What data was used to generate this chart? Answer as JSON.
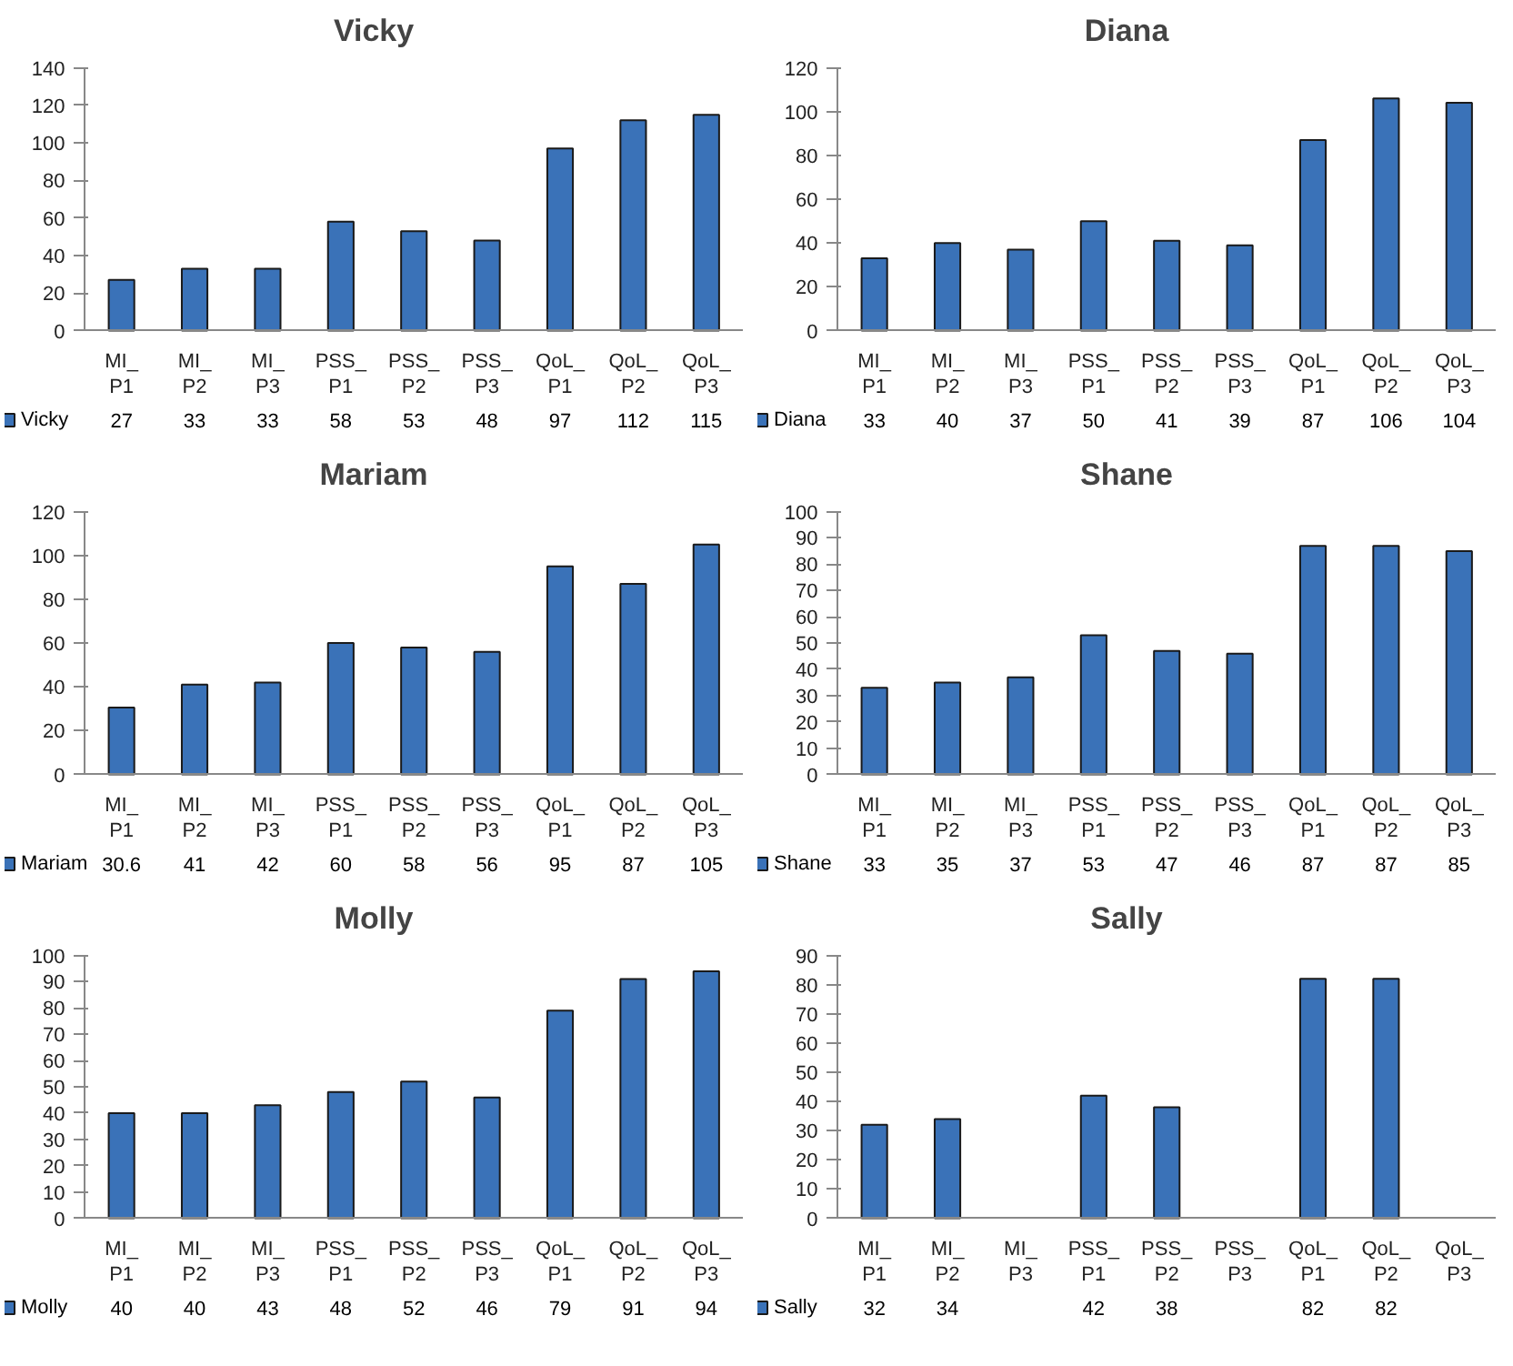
{
  "chart_data": [
    {
      "type": "bar",
      "title": "Vicky",
      "categories": [
        "MI_\nP1",
        "MI_\nP2",
        "MI_\nP3",
        "PSS_\nP1",
        "PSS_\nP2",
        "PSS_\nP3",
        "QoL_\nP1",
        "QoL_\nP2",
        "QoL_\nP3"
      ],
      "series": [
        {
          "name": "Vicky",
          "color": "#3a72b8",
          "values": [
            27,
            33,
            33,
            58,
            53,
            48,
            97,
            112,
            115
          ]
        }
      ],
      "ylim": [
        0,
        140
      ],
      "yticks": [
        0,
        20,
        40,
        60,
        80,
        100,
        120,
        140
      ],
      "data_labels": true,
      "grid": false,
      "legend": "bottom left"
    },
    {
      "type": "bar",
      "title": "Diana",
      "categories": [
        "MI_\nP1",
        "MI_\nP2",
        "MI_\nP3",
        "PSS_\nP1",
        "PSS_\nP2",
        "PSS_\nP3",
        "QoL_\nP1",
        "QoL_\nP2",
        "QoL_\nP3"
      ],
      "series": [
        {
          "name": "Diana",
          "color": "#3a72b8",
          "values": [
            33,
            40,
            37,
            50,
            41,
            39,
            87,
            106,
            104
          ]
        }
      ],
      "ylim": [
        0,
        120
      ],
      "yticks": [
        0,
        20,
        40,
        60,
        80,
        100,
        120
      ],
      "data_labels": true,
      "grid": false,
      "legend": "bottom left"
    },
    {
      "type": "bar",
      "title": "Mariam",
      "categories": [
        "MI_\nP1",
        "MI_\nP2",
        "MI_\nP3",
        "PSS_\nP1",
        "PSS_\nP2",
        "PSS_\nP3",
        "QoL_\nP1",
        "QoL_\nP2",
        "QoL_\nP3"
      ],
      "series": [
        {
          "name": "Mariam",
          "color": "#3a72b8",
          "values": [
            30.6,
            41,
            42,
            60,
            58,
            56,
            95,
            87,
            105
          ]
        }
      ],
      "ylim": [
        0,
        120
      ],
      "yticks": [
        0,
        20,
        40,
        60,
        80,
        100,
        120
      ],
      "data_labels": true,
      "grid": false,
      "legend": "bottom left"
    },
    {
      "type": "bar",
      "title": "Shane",
      "categories": [
        "MI_\nP1",
        "MI_\nP2",
        "MI_\nP3",
        "PSS_\nP1",
        "PSS_\nP2",
        "PSS_\nP3",
        "QoL_\nP1",
        "QoL_\nP2",
        "QoL_\nP3"
      ],
      "series": [
        {
          "name": "Shane",
          "color": "#3a72b8",
          "values": [
            33,
            35,
            37,
            53,
            47,
            46,
            87,
            87,
            85
          ]
        }
      ],
      "ylim": [
        0,
        100
      ],
      "yticks": [
        0,
        10,
        20,
        30,
        40,
        50,
        60,
        70,
        80,
        90,
        100
      ],
      "data_labels": true,
      "grid": false,
      "legend": "bottom left"
    },
    {
      "type": "bar",
      "title": "Molly",
      "categories": [
        "MI_\nP1",
        "MI_\nP2",
        "MI_\nP3",
        "PSS_\nP1",
        "PSS_\nP2",
        "PSS_\nP3",
        "QoL_\nP1",
        "QoL_\nP2",
        "QoL_\nP3"
      ],
      "series": [
        {
          "name": "Molly",
          "color": "#3a72b8",
          "values": [
            40,
            40,
            43,
            48,
            52,
            46,
            79,
            91,
            94
          ]
        }
      ],
      "ylim": [
        0,
        100
      ],
      "yticks": [
        0,
        10,
        20,
        30,
        40,
        50,
        60,
        70,
        80,
        90,
        100
      ],
      "data_labels": true,
      "grid": false,
      "legend": "bottom left"
    },
    {
      "type": "bar",
      "title": "Sally",
      "categories": [
        "MI_\nP1",
        "MI_\nP2",
        "MI_\nP3",
        "PSS_\nP1",
        "PSS_\nP2",
        "PSS_\nP3",
        "QoL_\nP1",
        "QoL_\nP2",
        "QoL_\nP3"
      ],
      "series": [
        {
          "name": "Sally",
          "color": "#3a72b8",
          "values": [
            32,
            34,
            null,
            42,
            38,
            null,
            82,
            82,
            null
          ]
        }
      ],
      "ylim": [
        0,
        90
      ],
      "yticks": [
        0,
        10,
        20,
        30,
        40,
        50,
        60,
        70,
        80,
        90
      ],
      "data_labels": true,
      "grid": false,
      "legend": "bottom left"
    }
  ]
}
